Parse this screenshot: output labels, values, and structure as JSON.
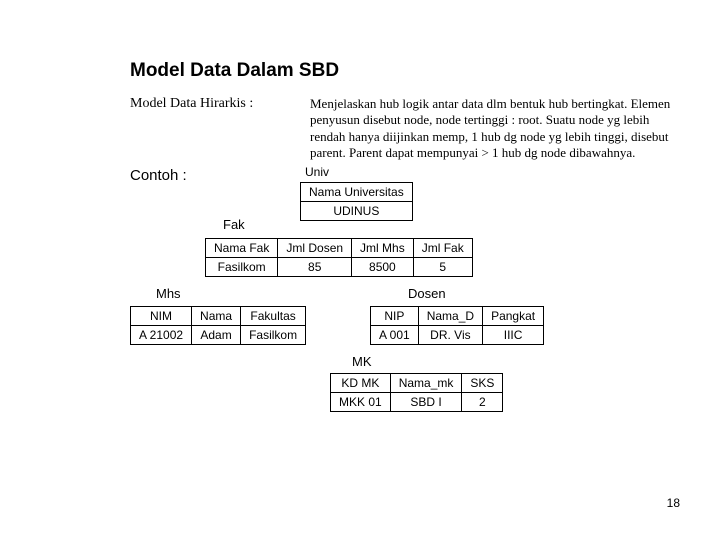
{
  "title": "Model Data Dalam SBD",
  "hir_label": "Model Data Hirarkis :",
  "description": "Menjelaskan hub logik antar data dlm bentuk hub bertingkat. Elemen penyusun disebut node, node tertinggi : root. Suatu node yg lebih rendah hanya diijinkan memp, 1 hub dg node yg lebih tinggi, disebut parent. Parent dapat mempunyai > 1 hub dg node dibawahnya.",
  "contoh": "Contoh :",
  "univ_label": "Univ",
  "univ_table": {
    "h": [
      "Nama Universitas"
    ],
    "r": [
      "UDINUS"
    ]
  },
  "fak_label": "Fak",
  "fak_table": {
    "h": [
      "Nama Fak",
      "Jml Dosen",
      "Jml Mhs",
      "Jml Fak"
    ],
    "r": [
      "Fasilkom",
      "85",
      "8500",
      "5"
    ]
  },
  "mhs_label": "Mhs",
  "mhs_table": {
    "h": [
      "NIM",
      "Nama",
      "Fakultas"
    ],
    "r": [
      "A 21002",
      "Adam",
      "Fasilkom"
    ]
  },
  "dosen_label": "Dosen",
  "dosen_table": {
    "h": [
      "NIP",
      "Nama_D",
      "Pangkat"
    ],
    "r": [
      "A 001",
      "DR. Vis",
      "IIIC"
    ]
  },
  "mk_label": "MK",
  "mk_table": {
    "h": [
      "KD MK",
      "Nama_mk",
      "SKS"
    ],
    "r": [
      "MKK 01",
      "SBD I",
      "2"
    ]
  },
  "pagenum": "18"
}
